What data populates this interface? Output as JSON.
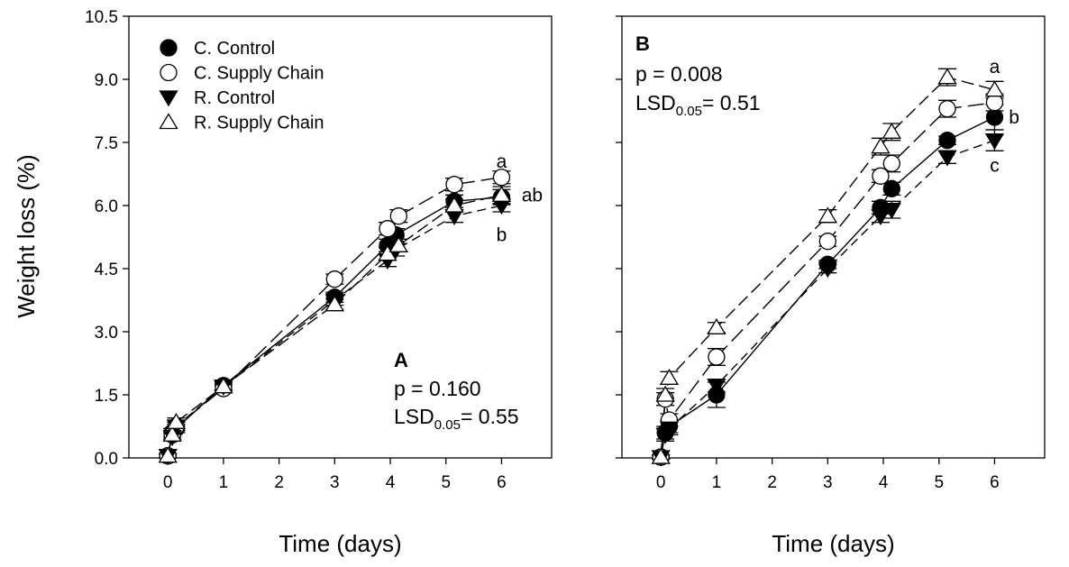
{
  "figure": {
    "ylabel": "Weight loss (%)"
  },
  "legend": [
    {
      "label": "C. Control",
      "marker": "circle-filled"
    },
    {
      "label": "C. Supply Chain",
      "marker": "circle-open"
    },
    {
      "label": "R. Control",
      "marker": "triangle-down-filled"
    },
    {
      "label": "R. Supply Chain",
      "marker": "triangle-up-open"
    }
  ],
  "chart_data": [
    {
      "type": "line",
      "panel": "A",
      "xlabel": "Time (days)",
      "ylabel": "Weight loss (%)",
      "xlim": [
        -0.7,
        6.9
      ],
      "ylim": [
        0,
        10.5
      ],
      "xticks": [
        "0",
        "1",
        "2",
        "3",
        "4",
        "5",
        "6"
      ],
      "yticks": [
        "0.0",
        "1.5",
        "3.0",
        "4.5",
        "6.0",
        "7.5",
        "9.0",
        "10.5"
      ],
      "stats": {
        "p_text": "p = 0.160",
        "lsd_prefix": "LSD",
        "lsd_sub": "0.05",
        "lsd_value": "= 0.55"
      },
      "series": [
        {
          "name": "C. Control",
          "marker": "circle-filled",
          "dash": "solid",
          "x": [
            0,
            0.08,
            0.15,
            1,
            3,
            3.95,
            4.1,
            5.15,
            6
          ],
          "y": [
            0.05,
            0.6,
            0.7,
            1.72,
            3.82,
            5.05,
            5.3,
            6.1,
            6.2
          ],
          "err": [
            0.05,
            0.1,
            0.1,
            0.1,
            0.12,
            0.15,
            0.15,
            0.15,
            0.18
          ]
        },
        {
          "name": "C. Supply Chain",
          "marker": "circle-open",
          "dash": "long",
          "x": [
            0,
            0.08,
            0.15,
            1,
            3,
            3.95,
            4.15,
            5.15,
            6
          ],
          "y": [
            0.05,
            0.55,
            0.75,
            1.65,
            4.25,
            5.45,
            5.75,
            6.5,
            6.67
          ],
          "err": [
            0.05,
            0.1,
            0.1,
            0.1,
            0.12,
            0.15,
            0.15,
            0.15,
            0.15
          ]
        },
        {
          "name": "R. Control",
          "marker": "triangle-down-filled",
          "dash": "short",
          "x": [
            0,
            0.08,
            0.15,
            1,
            3,
            3.95,
            4.1,
            5.15,
            6
          ],
          "y": [
            0.05,
            0.5,
            0.75,
            1.7,
            3.75,
            4.7,
            4.95,
            5.75,
            6.0
          ],
          "err": [
            0.05,
            0.1,
            0.1,
            0.1,
            0.12,
            0.15,
            0.15,
            0.15,
            0.15
          ]
        },
        {
          "name": "R. Supply Chain",
          "marker": "triangle-up-open",
          "dash": "medium",
          "x": [
            0,
            0.08,
            0.15,
            1,
            3,
            3.95,
            4.15,
            5.15,
            6
          ],
          "y": [
            0.05,
            0.55,
            0.85,
            1.7,
            3.65,
            4.85,
            5.05,
            6.0,
            6.25
          ],
          "err": [
            0.05,
            0.1,
            0.1,
            0.1,
            0.12,
            0.15,
            0.15,
            0.15,
            0.2
          ]
        }
      ],
      "annotations": [
        {
          "text": "a",
          "x": 6.0,
          "y": 7.05
        },
        {
          "text": "ab",
          "x": 6.55,
          "y": 6.25
        },
        {
          "text": "b",
          "x": 6.0,
          "y": 5.3
        }
      ]
    },
    {
      "type": "line",
      "panel": "B",
      "xlabel": "Time (days)",
      "ylabel": "Weight loss (%)",
      "xlim": [
        -0.7,
        6.9
      ],
      "ylim": [
        0,
        10.5
      ],
      "xticks": [
        "0",
        "1",
        "2",
        "3",
        "4",
        "5",
        "6"
      ],
      "yticks": [
        "0.0",
        "1.5",
        "3.0",
        "4.5",
        "6.0",
        "7.5",
        "9.0",
        "10.5"
      ],
      "stats": {
        "p_text": "p = 0.008",
        "lsd_prefix": "LSD",
        "lsd_sub": "0.05",
        "lsd_value": "= 0.51"
      },
      "series": [
        {
          "name": "C. Control",
          "marker": "circle-filled",
          "dash": "solid",
          "x": [
            0,
            0.08,
            0.15,
            1,
            3,
            3.95,
            4.15,
            5.15,
            6
          ],
          "y": [
            0.02,
            0.6,
            0.75,
            1.5,
            4.6,
            5.95,
            6.4,
            7.55,
            8.1
          ],
          "err": [
            0.05,
            0.15,
            0.15,
            0.3,
            0.1,
            0.15,
            0.15,
            0.1,
            0.3
          ]
        },
        {
          "name": "C. Supply Chain",
          "marker": "circle-open",
          "dash": "long",
          "x": [
            0,
            0.08,
            0.15,
            1,
            3,
            3.95,
            4.15,
            5.15,
            6
          ],
          "y": [
            0.02,
            1.4,
            0.9,
            2.4,
            5.15,
            6.7,
            7.0,
            8.3,
            8.45
          ],
          "err": [
            0.05,
            0.15,
            0.15,
            0.2,
            0.12,
            0.15,
            0.2,
            0.2,
            0.2
          ]
        },
        {
          "name": "R. Control",
          "marker": "triangle-down-filled",
          "dash": "short",
          "x": [
            0,
            0.08,
            0.15,
            1,
            3,
            3.95,
            4.15,
            5.15,
            6
          ],
          "y": [
            0.02,
            0.55,
            0.7,
            1.72,
            4.5,
            5.75,
            5.9,
            7.15,
            7.55
          ],
          "err": [
            0.05,
            0.15,
            0.15,
            0.15,
            0.1,
            0.15,
            0.2,
            0.15,
            0.25
          ]
        },
        {
          "name": "R. Supply Chain",
          "marker": "triangle-up-open",
          "dash": "medium",
          "x": [
            0,
            0.08,
            0.15,
            1,
            3,
            3.95,
            4.15,
            5.15,
            6
          ],
          "y": [
            0.02,
            1.5,
            1.9,
            3.1,
            5.75,
            7.4,
            7.75,
            9.05,
            8.75
          ],
          "err": [
            0.05,
            0.15,
            0.15,
            0.12,
            0.15,
            0.2,
            0.2,
            0.2,
            0.2
          ]
        }
      ],
      "annotations": [
        {
          "text": "a",
          "x": 6.0,
          "y": 9.3
        },
        {
          "text": "b",
          "x": 6.35,
          "y": 8.1
        },
        {
          "text": "c",
          "x": 6.0,
          "y": 6.95
        }
      ]
    }
  ]
}
